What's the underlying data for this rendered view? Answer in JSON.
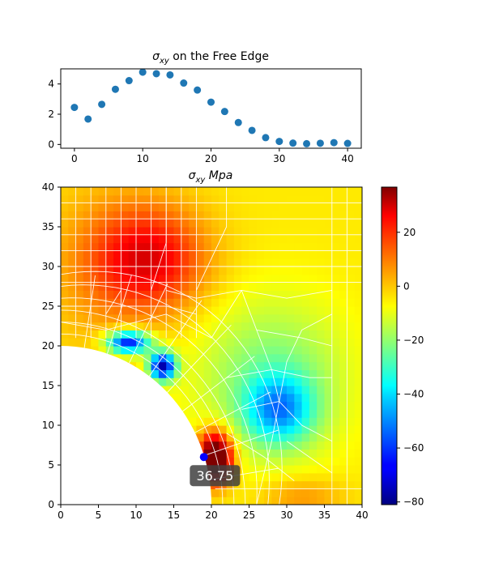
{
  "chart_data": [
    {
      "type": "scatter",
      "title": "σxy on the Free Edge",
      "title_symbol": "σ",
      "title_subscript": "xy",
      "title_rest": " on the Free Edge",
      "xlabel": "",
      "ylabel": "",
      "xlim": [
        -2,
        42
      ],
      "ylim": [
        -0.25,
        5.0
      ],
      "xticks": [
        "0",
        "10",
        "20",
        "30",
        "40"
      ],
      "yticks": [
        "0",
        "2",
        "4"
      ],
      "marker_color": "#1f77b4",
      "grid": false,
      "points": [
        {
          "x": 0,
          "y": 2.45
        },
        {
          "x": 2,
          "y": 1.68
        },
        {
          "x": 4,
          "y": 2.65
        },
        {
          "x": 6,
          "y": 3.65
        },
        {
          "x": 8,
          "y": 4.22
        },
        {
          "x": 10,
          "y": 4.78
        },
        {
          "x": 12,
          "y": 4.68
        },
        {
          "x": 14,
          "y": 4.6
        },
        {
          "x": 16,
          "y": 4.06
        },
        {
          "x": 18,
          "y": 3.6
        },
        {
          "x": 20,
          "y": 2.8
        },
        {
          "x": 22,
          "y": 2.18
        },
        {
          "x": 24,
          "y": 1.45
        },
        {
          "x": 26,
          "y": 0.93
        },
        {
          "x": 28,
          "y": 0.45
        },
        {
          "x": 30,
          "y": 0.2
        },
        {
          "x": 32,
          "y": 0.09
        },
        {
          "x": 34,
          "y": 0.05
        },
        {
          "x": 36,
          "y": 0.08
        },
        {
          "x": 38,
          "y": 0.12
        },
        {
          "x": 40,
          "y": 0.07
        }
      ]
    },
    {
      "type": "heatmap",
      "title": "σxy Mpa",
      "title_symbol": "σ",
      "title_subscript": "xy",
      "title_rest": " Mpa",
      "xlabel": "",
      "ylabel": "",
      "xlim": [
        0,
        40
      ],
      "ylim": [
        0,
        40
      ],
      "xticks": [
        "0",
        "5",
        "10",
        "15",
        "20",
        "25",
        "30",
        "35",
        "40"
      ],
      "yticks": [
        "0",
        "5",
        "10",
        "15",
        "20",
        "25",
        "30",
        "35",
        "40"
      ],
      "colormap": "jet",
      "hole": {
        "center": [
          0,
          0
        ],
        "radius": 20
      },
      "mesh_color": "#ffffff",
      "colorbar": {
        "range": [
          -81,
          36.75
        ],
        "ticks": [
          "20",
          "0",
          "−20",
          "−40",
          "−60",
          "−80"
        ],
        "tick_values": [
          20,
          0,
          -20,
          -40,
          -60,
          -80
        ]
      },
      "field_hotspots": [
        {
          "x": 12,
          "y": 31,
          "value": 25
        },
        {
          "x": 20,
          "y": 6,
          "value": 36.75
        },
        {
          "x": 8,
          "y": 20.5,
          "value": -60
        },
        {
          "x": 13,
          "y": 17.5,
          "value": -75
        },
        {
          "x": 29,
          "y": 12,
          "value": -38
        }
      ],
      "annotation": {
        "label": "36.75",
        "marker_x": 19,
        "marker_y": 6,
        "marker_color": "#0000ff",
        "box_color": "#404040"
      }
    }
  ]
}
